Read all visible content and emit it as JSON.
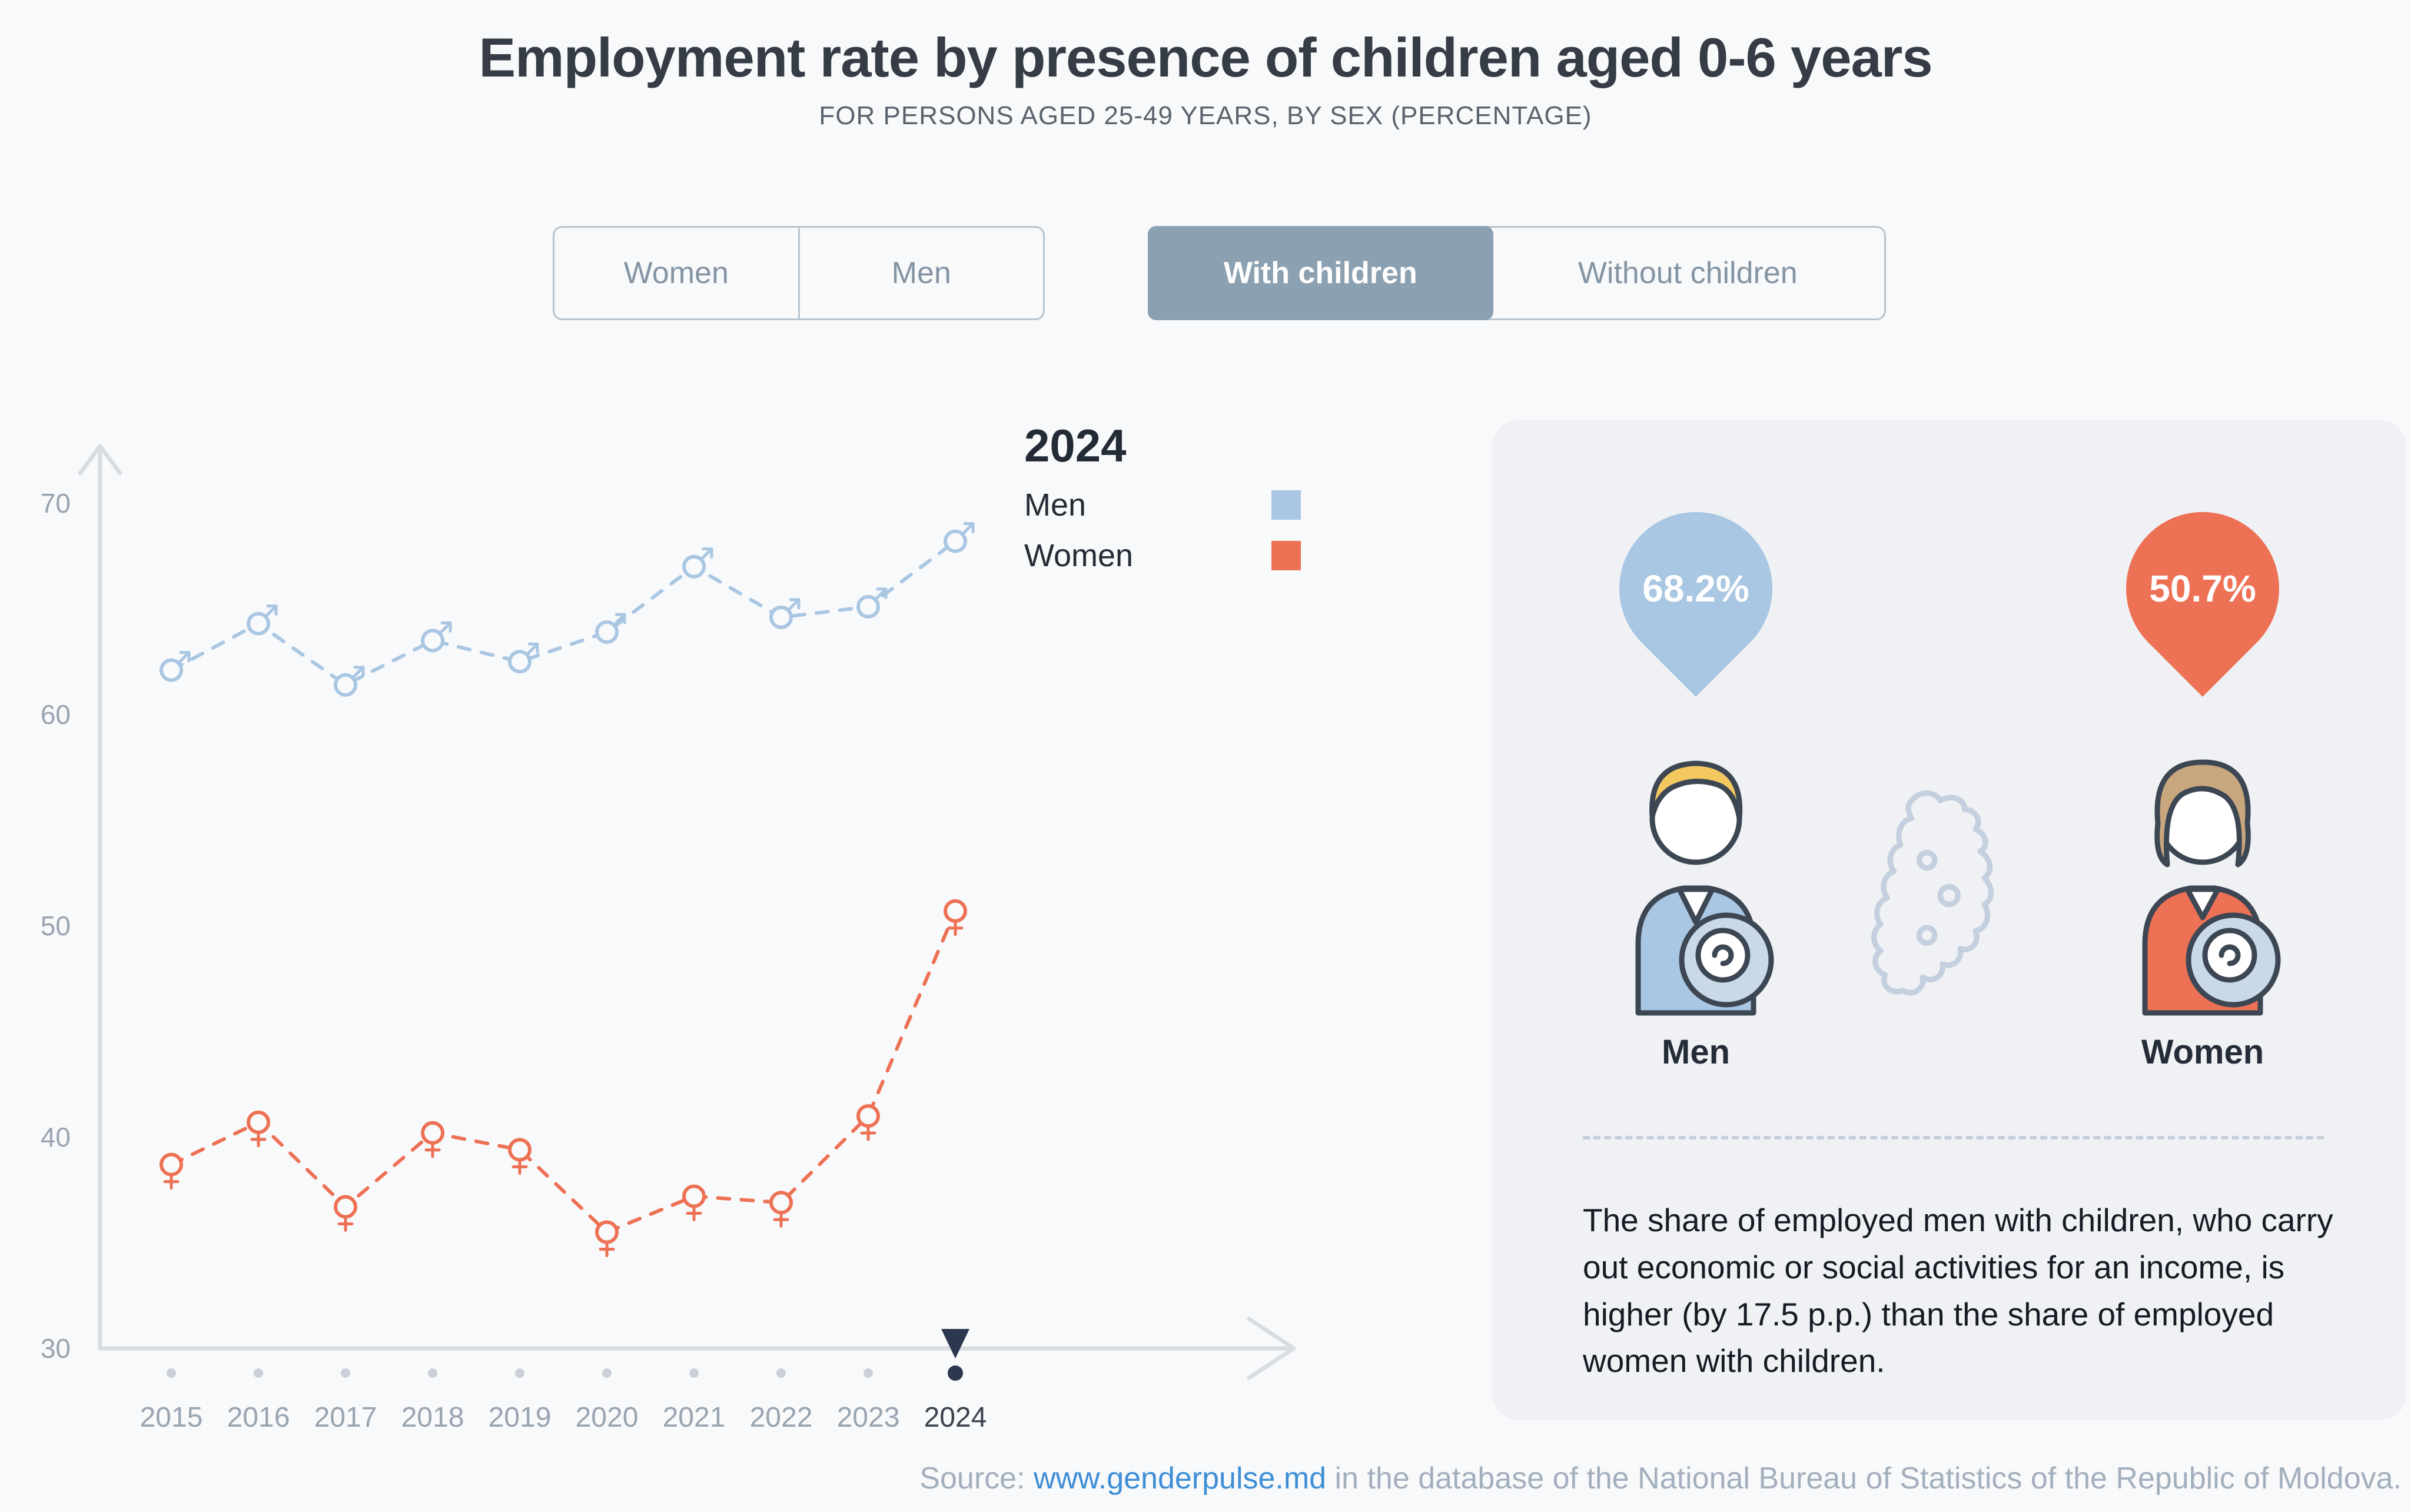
{
  "page": {
    "title": "Employment rate by presence of children aged 0-6 years",
    "subtitle": "FOR PERSONS AGED 25-49 YEARS, BY SEX (PERCENTAGE)"
  },
  "filters": {
    "sex_toggle": {
      "options": [
        {
          "label": "Women",
          "active": false
        },
        {
          "label": "Men",
          "active": false
        }
      ]
    },
    "children_toggle": {
      "options": [
        {
          "label": "With children",
          "active": true
        },
        {
          "label": "Without children",
          "active": false
        }
      ]
    }
  },
  "legend": {
    "year": "2024",
    "items": [
      {
        "label": "Men",
        "color": "#a9c6e2"
      },
      {
        "label": "Women",
        "color": "#ed7155"
      }
    ]
  },
  "chart_data": {
    "type": "line",
    "title": "Employment rate by presence of children aged 0-6 years",
    "subtitle": "For persons aged 25-49 years, by sex (percentage)",
    "x": [
      2015,
      2016,
      2017,
      2018,
      2019,
      2020,
      2021,
      2022,
      2023,
      2024
    ],
    "series": [
      {
        "name": "Men",
        "symbol": "male",
        "color": "#a9c6e2",
        "values": [
          62.1,
          64.3,
          61.4,
          63.5,
          62.5,
          63.9,
          67.0,
          64.6,
          65.1,
          68.2
        ]
      },
      {
        "name": "Women",
        "symbol": "female",
        "color": "#ed7155",
        "values": [
          38.7,
          40.7,
          36.7,
          40.2,
          39.4,
          35.5,
          37.2,
          36.9,
          41.0,
          50.7
        ]
      }
    ],
    "ylim": [
      30,
      70
    ],
    "yticks": [
      30,
      40,
      50,
      60,
      70
    ],
    "selected_year": 2024,
    "line_style": "dashed",
    "grid": false,
    "legend_position": "top-right"
  },
  "infocard": {
    "men": {
      "value": "68.2%",
      "label": "Men",
      "color": "#a9c6e2"
    },
    "women": {
      "value": "50.7%",
      "label": "Women",
      "color": "#ed7155"
    },
    "description": "The share of employed men with children, who carry out economic or social activities for an income, is higher (by 17.5 p.p.) than the share of employed women with children."
  },
  "footer": {
    "source_prefix": "Source: ",
    "source_link": "www.genderpulse.md",
    "source_suffix": " in the database of the National Bureau of Statistics of the Republic of Moldova."
  }
}
